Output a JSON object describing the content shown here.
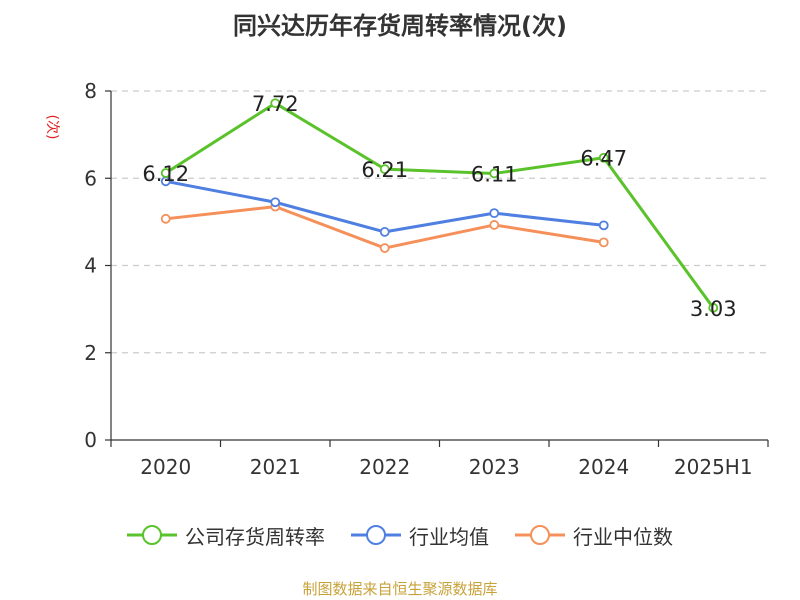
{
  "chart_data": {
    "type": "line",
    "title": "同兴达历年存货周转率情况(次)",
    "ylabel": "(次)",
    "categories": [
      "2020",
      "2021",
      "2022",
      "2023",
      "2024",
      "2025H1"
    ],
    "ylim": [
      0,
      8
    ],
    "yticks": [
      0,
      2,
      4,
      6,
      8
    ],
    "grid": true,
    "legend_position": "bottom",
    "series": [
      {
        "name": "公司存货周转率",
        "color": "#5ac22a",
        "values": [
          6.12,
          7.72,
          6.21,
          6.11,
          6.47,
          3.03
        ],
        "labels": [
          "6.12",
          "7.72",
          "6.21",
          "6.11",
          "6.47",
          "3.03"
        ]
      },
      {
        "name": "行业均值",
        "color": "#4f7fe0",
        "values": [
          5.93,
          5.45,
          4.77,
          5.2,
          4.92,
          null
        ]
      },
      {
        "name": "行业中位数",
        "color": "#f5905a",
        "values": [
          5.07,
          5.35,
          4.4,
          4.93,
          4.53,
          null
        ]
      }
    ]
  },
  "source": "制图数据来自恒生聚源数据库"
}
